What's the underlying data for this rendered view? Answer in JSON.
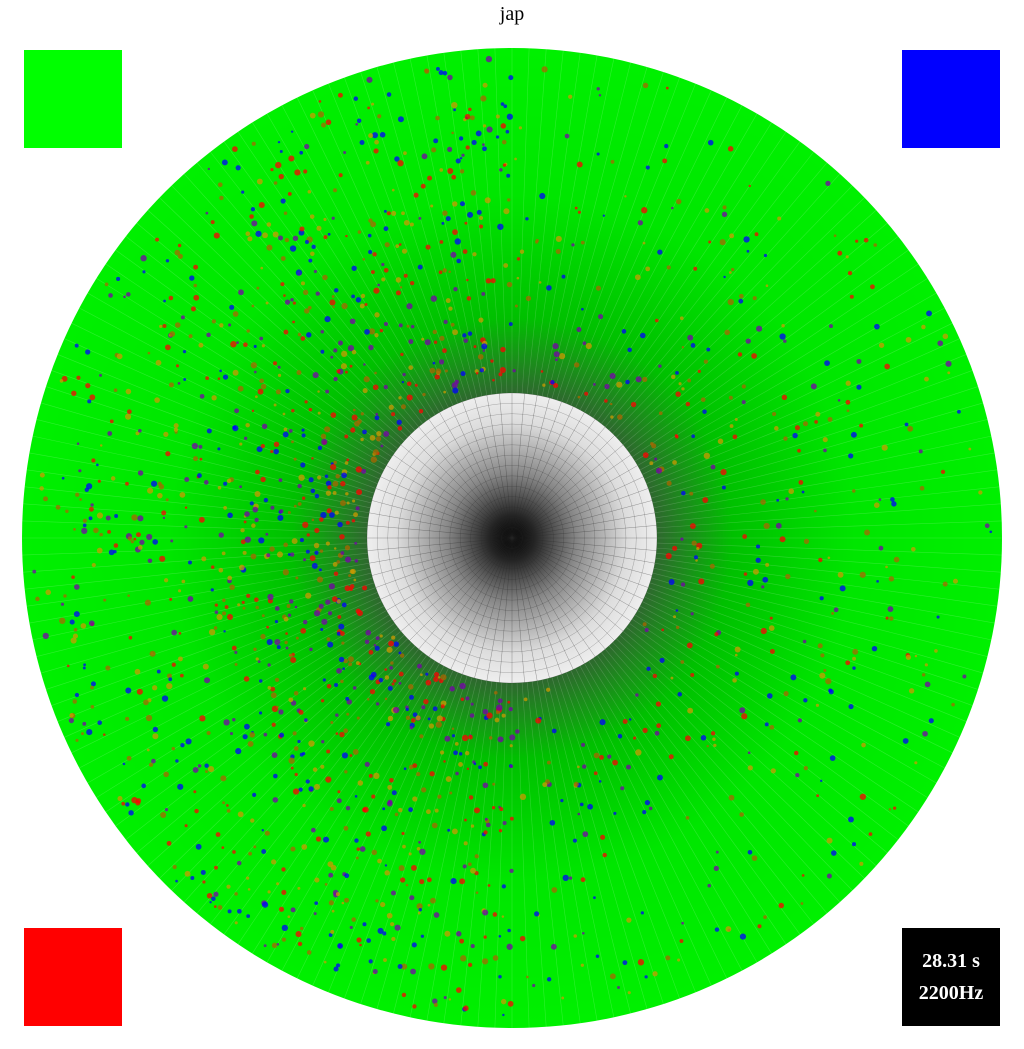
{
  "title": "jap",
  "swatches": {
    "top_left": "#00ff00",
    "top_right": "#0000ff",
    "bottom_left": "#ff0000"
  },
  "info": {
    "time": "28.31 s",
    "frequency": "2200Hz"
  },
  "disc": {
    "base_color": "#00ee00",
    "center_color": "#ffffff",
    "ring_colors": [
      "#ff0000",
      "#0000ff",
      "#cc9900",
      "#aa6600",
      "#7700aa"
    ]
  }
}
